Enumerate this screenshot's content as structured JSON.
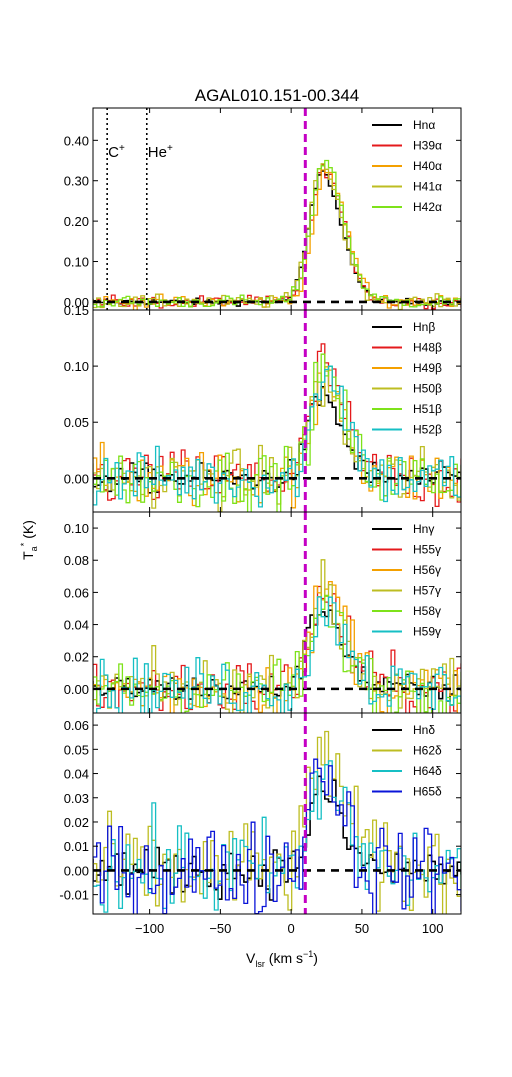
{
  "title": "AGAL010.151-00.344",
  "xlabel": "V",
  "xlabel_sub": "lsr",
  "xlabel_unit": " (km s",
  "xlabel_exp": "−1",
  "xlabel_close": ")",
  "ylabel": "T",
  "ylabel_sub": "a",
  "ylabel_sup": "*",
  "ylabel_unit": "(K)",
  "colors": {
    "Hn": "#000000",
    "red": "#e41a1c",
    "orange": "#f4a000",
    "olive": "#bdbd22",
    "lime": "#7ee21a",
    "cyan": "#16bfc4",
    "blue": "#0a14d8",
    "vline": "#c400c4"
  },
  "chart_data": [
    {
      "type": "line",
      "xlim": [
        -140,
        120
      ],
      "ylim": [
        -0.02,
        0.48
      ],
      "yticks": [
        0.0,
        0.1,
        0.2,
        0.3,
        0.4
      ],
      "ytick_labels": [
        "0.00",
        "0.10",
        "0.20",
        "0.30",
        "0.40"
      ],
      "xticks": [
        -100,
        -50,
        0,
        50,
        100
      ],
      "xtick_labels": [],
      "vline_x": 10,
      "markers": [
        {
          "label": "C",
          "sup": "+",
          "x": -130
        },
        {
          "label": "He",
          "sup": "+",
          "x": -102
        }
      ],
      "series": [
        {
          "name": "Hnα",
          "color": "#000000"
        },
        {
          "name": "H39α",
          "color": "#e41a1c"
        },
        {
          "name": "H40α",
          "color": "#f4a000"
        },
        {
          "name": "H41α",
          "color": "#bdbd22"
        },
        {
          "name": "H42α",
          "color": "#7ee21a"
        }
      ],
      "profile": {
        "peak": [
          0.32,
          0.33,
          0.32,
          0.34,
          0.35
        ],
        "center": 22,
        "sigma": 12,
        "noise": 0.011
      }
    },
    {
      "type": "line",
      "xlim": [
        -140,
        120
      ],
      "ylim": [
        -0.03,
        0.15
      ],
      "yticks": [
        0.0,
        0.05,
        0.1,
        0.15
      ],
      "ytick_labels": [
        "0.00",
        "0.05",
        "0.10",
        "0.15"
      ],
      "xticks": [
        -100,
        -50,
        0,
        50,
        100
      ],
      "xtick_labels": [],
      "vline_x": 10,
      "series": [
        {
          "name": "Hnβ",
          "color": "#000000"
        },
        {
          "name": "H48β",
          "color": "#e41a1c"
        },
        {
          "name": "H49β",
          "color": "#f4a000"
        },
        {
          "name": "H50β",
          "color": "#bdbd22"
        },
        {
          "name": "H51β",
          "color": "#7ee21a"
        },
        {
          "name": "H52β",
          "color": "#16bfc4"
        }
      ],
      "profile": {
        "peak": [
          0.075,
          0.1,
          0.09,
          0.085,
          0.095,
          0.1
        ],
        "center": 22,
        "sigma": 12,
        "noise": 0.018
      }
    },
    {
      "type": "line",
      "xlim": [
        -140,
        120
      ],
      "ylim": [
        -0.015,
        0.11
      ],
      "yticks": [
        0.0,
        0.02,
        0.04,
        0.06,
        0.08,
        0.1
      ],
      "ytick_labels": [
        "0.00",
        "0.02",
        "0.04",
        "0.06",
        "0.08",
        "0.10"
      ],
      "xticks": [
        -100,
        -50,
        0,
        50,
        100
      ],
      "xtick_labels": [],
      "vline_x": 10,
      "series": [
        {
          "name": "Hnγ",
          "color": "#000000"
        },
        {
          "name": "H55γ",
          "color": "#e41a1c"
        },
        {
          "name": "H56γ",
          "color": "#f4a000"
        },
        {
          "name": "H57γ",
          "color": "#bdbd22"
        },
        {
          "name": "H58γ",
          "color": "#7ee21a"
        },
        {
          "name": "H59γ",
          "color": "#16bfc4"
        }
      ],
      "profile": {
        "peak": [
          0.05,
          0.055,
          0.062,
          0.058,
          0.045,
          0.05
        ],
        "center": 22,
        "sigma": 13,
        "noise": 0.013
      }
    },
    {
      "type": "line",
      "xlim": [
        -140,
        120
      ],
      "ylim": [
        -0.018,
        0.065
      ],
      "yticks": [
        -0.01,
        0.0,
        0.01,
        0.02,
        0.03,
        0.04,
        0.05,
        0.06
      ],
      "ytick_labels": [
        "-0.01",
        "0.00",
        "0.01",
        "0.02",
        "0.03",
        "0.04",
        "0.05",
        "0.06"
      ],
      "xticks": [
        -100,
        -50,
        0,
        50,
        100
      ],
      "xtick_labels": [
        "−100",
        "−50",
        "0",
        "50",
        "100"
      ],
      "vline_x": 10,
      "series": [
        {
          "name": "Hnδ",
          "color": "#000000"
        },
        {
          "name": "H62δ",
          "color": "#bdbd22"
        },
        {
          "name": "H64δ",
          "color": "#16bfc4"
        },
        {
          "name": "H65δ",
          "color": "#0a14d8"
        }
      ],
      "profile": {
        "peak": [
          0.033,
          0.05,
          0.04,
          0.045
        ],
        "center": 22,
        "sigma": 12,
        "noise": 0.014
      }
    }
  ]
}
